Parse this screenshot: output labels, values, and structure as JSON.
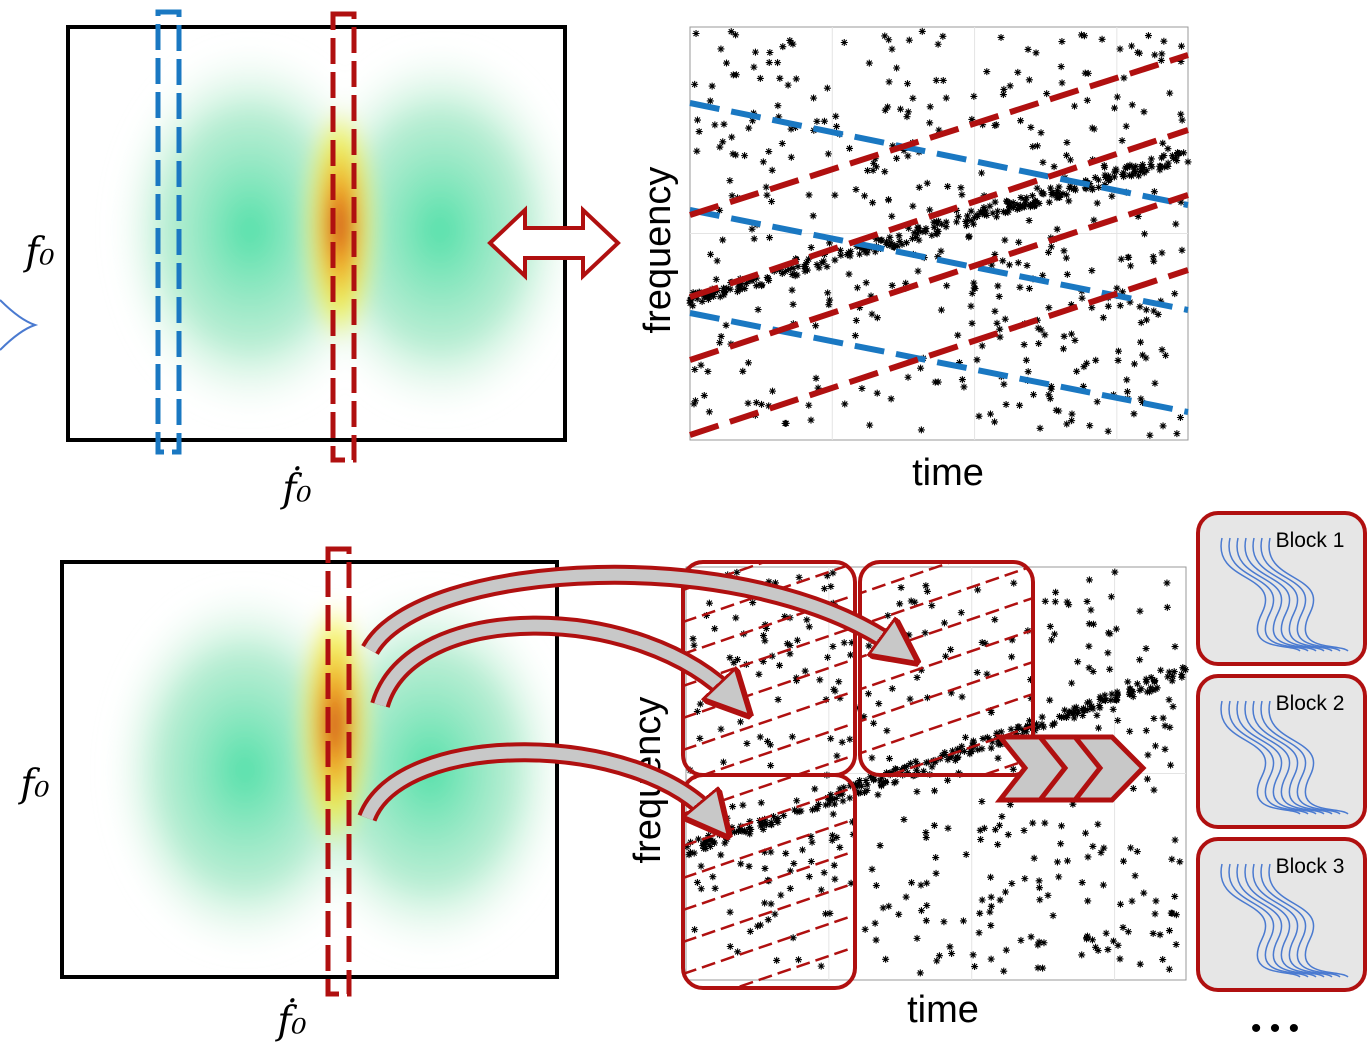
{
  "panels": [
    {
      "heatmap_y_label": "f₀",
      "heatmap_x_label": "ḟ₀",
      "plot_y_label": "frequency",
      "plot_x_label": "time"
    },
    {
      "heatmap_y_label": "f₀",
      "heatmap_x_label": "ḟ₀",
      "plot_y_label": "frequency",
      "plot_x_label": "time"
    }
  ],
  "blocks": [
    "Block 1",
    "Block 2",
    "Block 3"
  ],
  "ellipsis": "• • •"
}
